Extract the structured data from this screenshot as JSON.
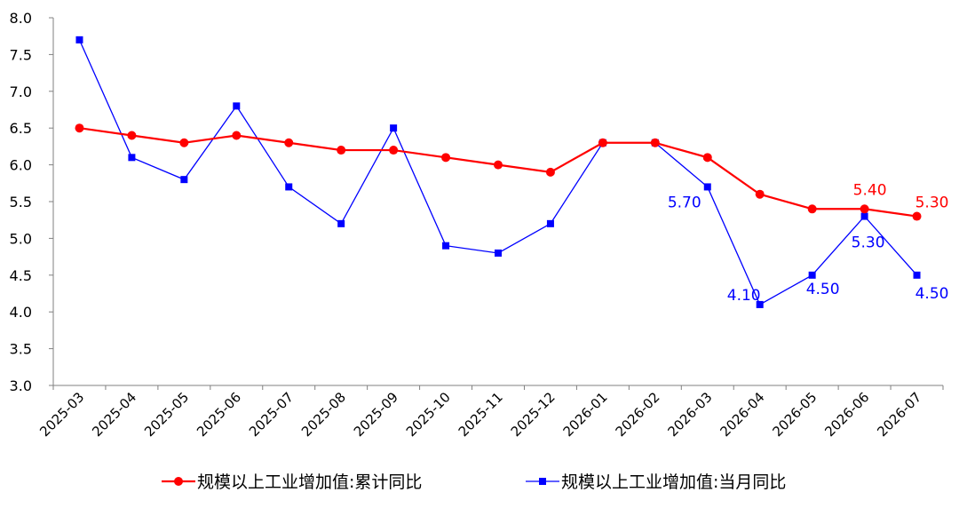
{
  "chart_data": {
    "type": "line",
    "title": "",
    "xlabel": "",
    "ylabel": "",
    "ylim": [
      3.0,
      8.0
    ],
    "y_ticks": [
      "3.0",
      "3.5",
      "4.0",
      "4.5",
      "5.0",
      "5.5",
      "6.0",
      "6.5",
      "7.0",
      "7.5",
      "8.0"
    ],
    "categories": [
      "2025-03",
      "2025-04",
      "2025-05",
      "2025-06",
      "2025-07",
      "2025-08",
      "2025-09",
      "2025-10",
      "2025-11",
      "2025-12",
      "2026-01",
      "2026-02",
      "2026-03",
      "2026-04",
      "2026-05",
      "2026-06",
      "2026-07"
    ],
    "grid": false,
    "legend_position": "bottom",
    "series": [
      {
        "name": "规模以上工业增加值:累计同比",
        "color": "#ff0000",
        "marker": "circle",
        "values": [
          6.5,
          6.4,
          6.3,
          6.4,
          6.3,
          6.2,
          6.2,
          6.1,
          6.0,
          5.9,
          6.3,
          6.3,
          6.1,
          5.6,
          5.4,
          5.4,
          5.3
        ],
        "data_labels": [
          {
            "index": 15,
            "text": "5.40"
          },
          {
            "index": 16,
            "text": "5.30"
          }
        ]
      },
      {
        "name": "规模以上工业增加值:当月同比",
        "color": "#0000ff",
        "marker": "square",
        "values": [
          7.7,
          6.1,
          5.8,
          6.8,
          5.7,
          5.2,
          6.5,
          4.9,
          4.8,
          5.2,
          6.3,
          6.3,
          5.7,
          4.1,
          4.5,
          5.3,
          4.5
        ],
        "data_labels": [
          {
            "index": 12,
            "text": "5.70"
          },
          {
            "index": 13,
            "text": "4.10"
          },
          {
            "index": 14,
            "text": "4.50"
          },
          {
            "index": 15,
            "text": "5.30"
          },
          {
            "index": 16,
            "text": "4.50"
          }
        ]
      }
    ]
  }
}
